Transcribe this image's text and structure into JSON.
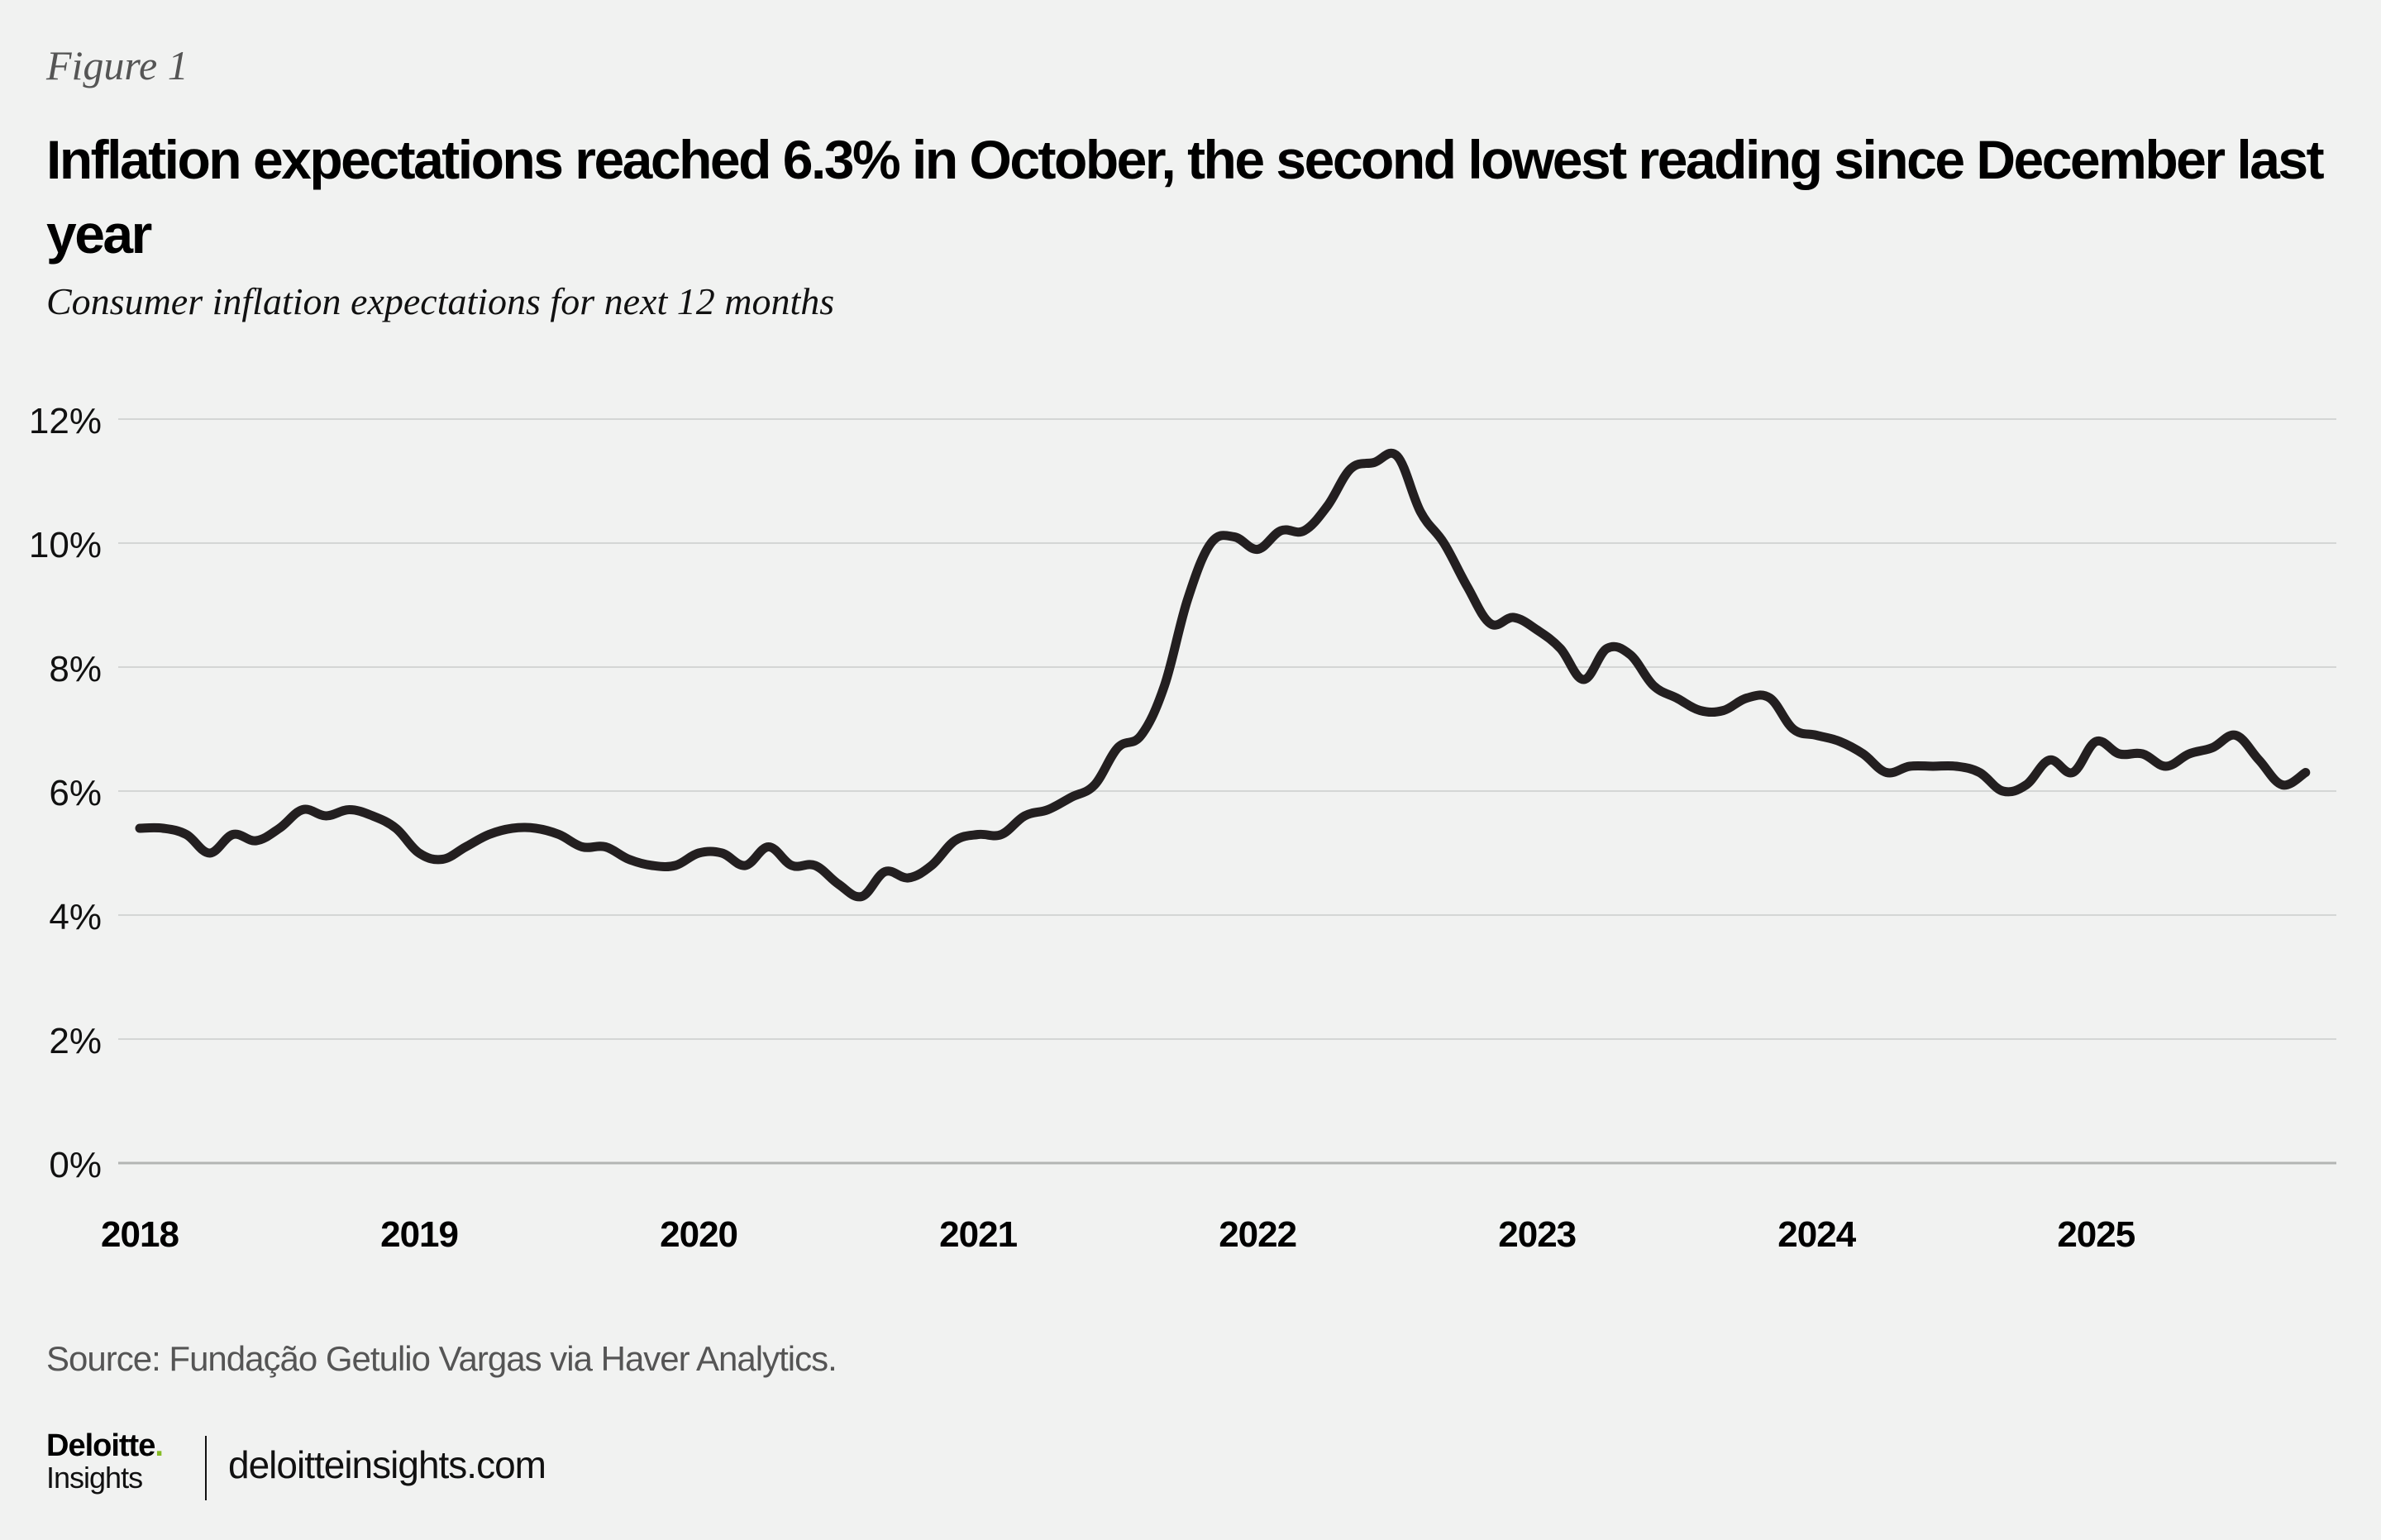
{
  "figure_label": "Figure 1",
  "title": "Inflation expectations reached 6.3% in October, the second lowest reading since December last year",
  "subtitle": "Consumer inflation expectations for next 12 months",
  "source": "Source: Fundação Getulio Vargas via Haver Analytics.",
  "branding": {
    "logo_name": "Deloitte",
    "logo_dot": ".",
    "logo_sub": "Insights",
    "url": "deloitteinsights.com",
    "accent_color": "#86bc25"
  },
  "chart_data": {
    "type": "line",
    "title": "Consumer inflation expectations for next 12 months",
    "xlabel": "",
    "ylabel": "",
    "x_start": "2018-01",
    "x_frequency": "monthly",
    "x_ticks": [
      "2018",
      "2019",
      "2020",
      "2021",
      "2022",
      "2023",
      "2024",
      "2025"
    ],
    "y_ticks": [
      "0%",
      "2%",
      "4%",
      "6%",
      "8%",
      "10%",
      "12%"
    ],
    "y_tick_values": [
      0,
      2,
      4,
      6,
      8,
      10,
      12
    ],
    "ylim": [
      0,
      12
    ],
    "grid": true,
    "legend": "none",
    "line_color": "#231f20",
    "series": [
      {
        "name": "Consumer inflation expectations (next 12 months, %)",
        "values": [
          5.4,
          5.4,
          5.3,
          5.0,
          5.3,
          5.2,
          5.4,
          5.7,
          5.6,
          5.7,
          5.6,
          5.4,
          5.0,
          4.9,
          5.1,
          5.3,
          5.4,
          5.4,
          5.3,
          5.1,
          5.1,
          4.9,
          4.8,
          4.8,
          5.0,
          5.0,
          4.8,
          5.1,
          4.8,
          4.8,
          4.5,
          4.3,
          4.7,
          4.6,
          4.8,
          5.2,
          5.3,
          5.3,
          5.6,
          5.7,
          5.9,
          6.1,
          6.7,
          6.9,
          7.7,
          9.1,
          10.0,
          10.1,
          9.9,
          10.2,
          10.2,
          10.6,
          11.2,
          11.3,
          11.4,
          10.5,
          10.0,
          9.3,
          8.7,
          8.8,
          8.6,
          8.3,
          7.8,
          8.3,
          8.2,
          7.7,
          7.5,
          7.3,
          7.3,
          7.5,
          7.5,
          7.0,
          6.9,
          6.8,
          6.6,
          6.3,
          6.4,
          6.4,
          6.4,
          6.3,
          6.0,
          6.1,
          6.5,
          6.3,
          6.8,
          6.6,
          6.6,
          6.4,
          6.6,
          6.7,
          6.9,
          6.5,
          6.1,
          6.3
        ]
      }
    ]
  }
}
